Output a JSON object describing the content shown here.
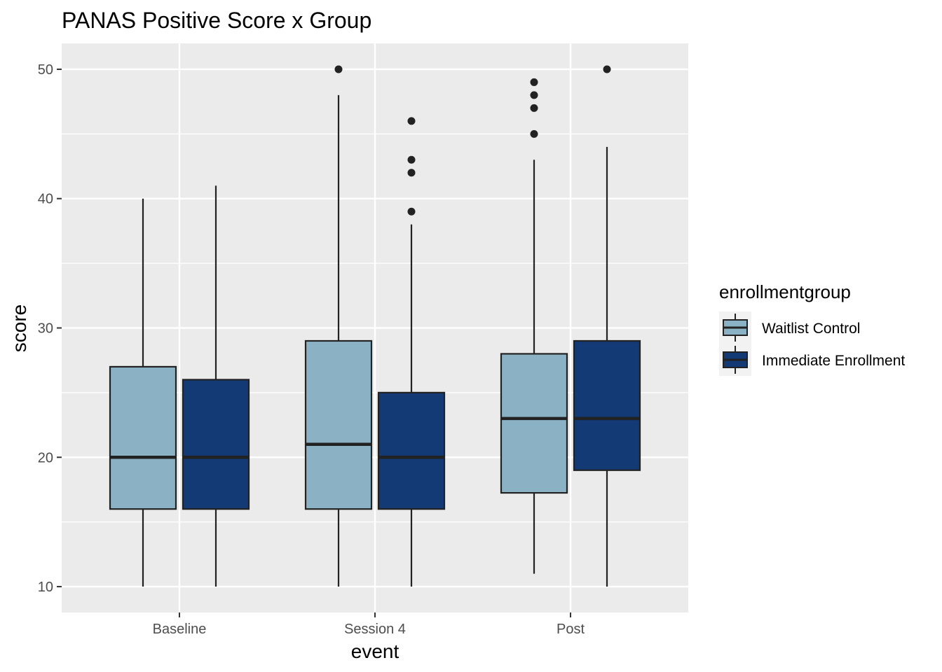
{
  "chart_data": {
    "type": "boxplot",
    "title": "PANAS Positive Score x Group",
    "xlabel": "event",
    "ylabel": "score",
    "categories": [
      "Baseline",
      "Session 4",
      "Post"
    ],
    "ylim": [
      8,
      52
    ],
    "yticks": [
      10,
      20,
      30,
      40,
      50
    ],
    "grid": true,
    "legend": {
      "title": "enrollmentgroup",
      "placement": "right"
    },
    "series": [
      {
        "name": "Waitlist Control",
        "color": "#8BB2C4",
        "boxes": [
          {
            "min": 10,
            "q1": 16,
            "median": 20,
            "q3": 27,
            "max": 40,
            "outliers": []
          },
          {
            "min": 10,
            "q1": 16,
            "median": 21,
            "q3": 29,
            "max": 48,
            "outliers": [
              50
            ]
          },
          {
            "min": 11,
            "q1": 17.25,
            "median": 23,
            "q3": 28,
            "max": 43,
            "outliers": [
              45,
              47,
              48,
              49
            ]
          }
        ]
      },
      {
        "name": "Immediate Enrollment",
        "color": "#133A75",
        "boxes": [
          {
            "min": 10,
            "q1": 16,
            "median": 20,
            "q3": 26,
            "max": 41,
            "outliers": []
          },
          {
            "min": 10,
            "q1": 16,
            "median": 20,
            "q3": 25,
            "max": 38,
            "outliers": [
              39,
              42,
              43,
              46
            ]
          },
          {
            "min": 10,
            "q1": 19,
            "median": 23,
            "q3": 29,
            "max": 44,
            "outliers": [
              50
            ]
          }
        ]
      }
    ]
  }
}
